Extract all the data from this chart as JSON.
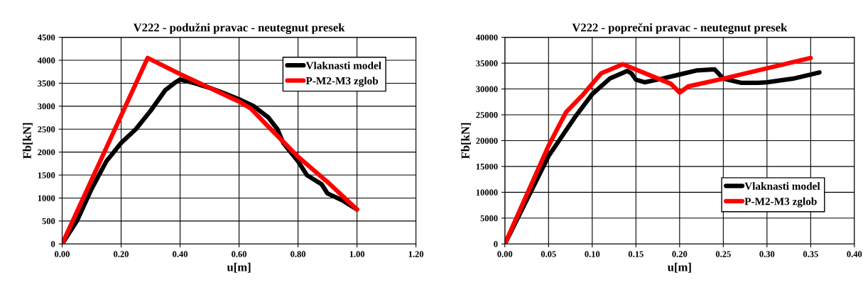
{
  "chart_data": [
    {
      "type": "line",
      "title": "V222 - podužni pravac - neutegnut presek",
      "xlabel": "u[m]",
      "ylabel": "Fb[kN]",
      "xlim": [
        0,
        1.2
      ],
      "xticks": [
        {
          "value": 0,
          "label": "0.00"
        },
        {
          "value": 0.2,
          "label": "0.20"
        },
        {
          "value": 0.4,
          "label": "0.40"
        },
        {
          "value": 0.6,
          "label": "0.60"
        },
        {
          "value": 0.8,
          "label": "0.80"
        },
        {
          "value": 1.0,
          "label": "1.00"
        },
        {
          "value": 1.2,
          "label": "1.20"
        }
      ],
      "ylim": [
        0,
        4500
      ],
      "yticks": [
        0,
        500,
        1000,
        1500,
        2000,
        2500,
        3000,
        3500,
        4000,
        4500
      ],
      "grid": true,
      "legend": "top right",
      "marker": "none",
      "line_style": "solid",
      "series": [
        {
          "name": "Vlaknasti model",
          "color": "#000000",
          "x": [
            0,
            0.05,
            0.1,
            0.15,
            0.2,
            0.25,
            0.3,
            0.35,
            0.38,
            0.4,
            0.45,
            0.5,
            0.55,
            0.6,
            0.65,
            0.7,
            0.73,
            0.75,
            0.8,
            0.83,
            0.88,
            0.9,
            0.95,
            1.0
          ],
          "values": [
            0,
            500,
            1200,
            1800,
            2200,
            2500,
            2900,
            3350,
            3500,
            3580,
            3500,
            3400,
            3280,
            3150,
            3000,
            2750,
            2500,
            2200,
            1800,
            1500,
            1300,
            1100,
            950,
            750
          ]
        },
        {
          "name": "P-M2-M3 zglob",
          "color": "#ff0000",
          "x": [
            0,
            0.29,
            0.4,
            0.6,
            0.64,
            0.7,
            0.8,
            0.9,
            1.0
          ],
          "values": [
            0,
            4050,
            3700,
            3100,
            2950,
            2550,
            1900,
            1350,
            750
          ]
        }
      ]
    },
    {
      "type": "line",
      "title": "V222 - poprečni pravac - neutegnut presek",
      "xlabel": "u[m]",
      "ylabel": "Fb[kN]",
      "xlim": [
        0,
        0.4
      ],
      "xticks": [
        {
          "value": 0,
          "label": "0.00"
        },
        {
          "value": 0.05,
          "label": "0.05"
        },
        {
          "value": 0.1,
          "label": "0.10"
        },
        {
          "value": 0.15,
          "label": "0.15"
        },
        {
          "value": 0.2,
          "label": "0.20"
        },
        {
          "value": 0.25,
          "label": "0.25"
        },
        {
          "value": 0.3,
          "label": "0.30"
        },
        {
          "value": 0.35,
          "label": "0.35"
        },
        {
          "value": 0.4,
          "label": "0.40"
        }
      ],
      "ylim": [
        0,
        40000
      ],
      "yticks": [
        0,
        5000,
        10000,
        15000,
        20000,
        25000,
        30000,
        35000,
        40000
      ],
      "grid": true,
      "legend": "bottom right",
      "marker": "none",
      "line_style": "solid",
      "series": [
        {
          "name": "Vlaknasti model",
          "color": "#000000",
          "x": [
            0,
            0.05,
            0.08,
            0.1,
            0.12,
            0.14,
            0.145,
            0.15,
            0.16,
            0.18,
            0.2,
            0.22,
            0.24,
            0.25,
            0.27,
            0.29,
            0.3,
            0.33,
            0.36
          ],
          "values": [
            0,
            17000,
            24500,
            29000,
            32000,
            33500,
            33000,
            31800,
            31300,
            32000,
            32800,
            33600,
            33800,
            32000,
            31200,
            31200,
            31300,
            32000,
            33200
          ]
        },
        {
          "name": "P-M2-M3 zglob",
          "color": "#ff0000",
          "x": [
            0,
            0.05,
            0.07,
            0.09,
            0.11,
            0.135,
            0.19,
            0.2,
            0.21,
            0.25,
            0.35
          ],
          "values": [
            0,
            19000,
            25500,
            29000,
            33000,
            34800,
            31000,
            29300,
            30500,
            32000,
            36000
          ]
        }
      ]
    }
  ]
}
